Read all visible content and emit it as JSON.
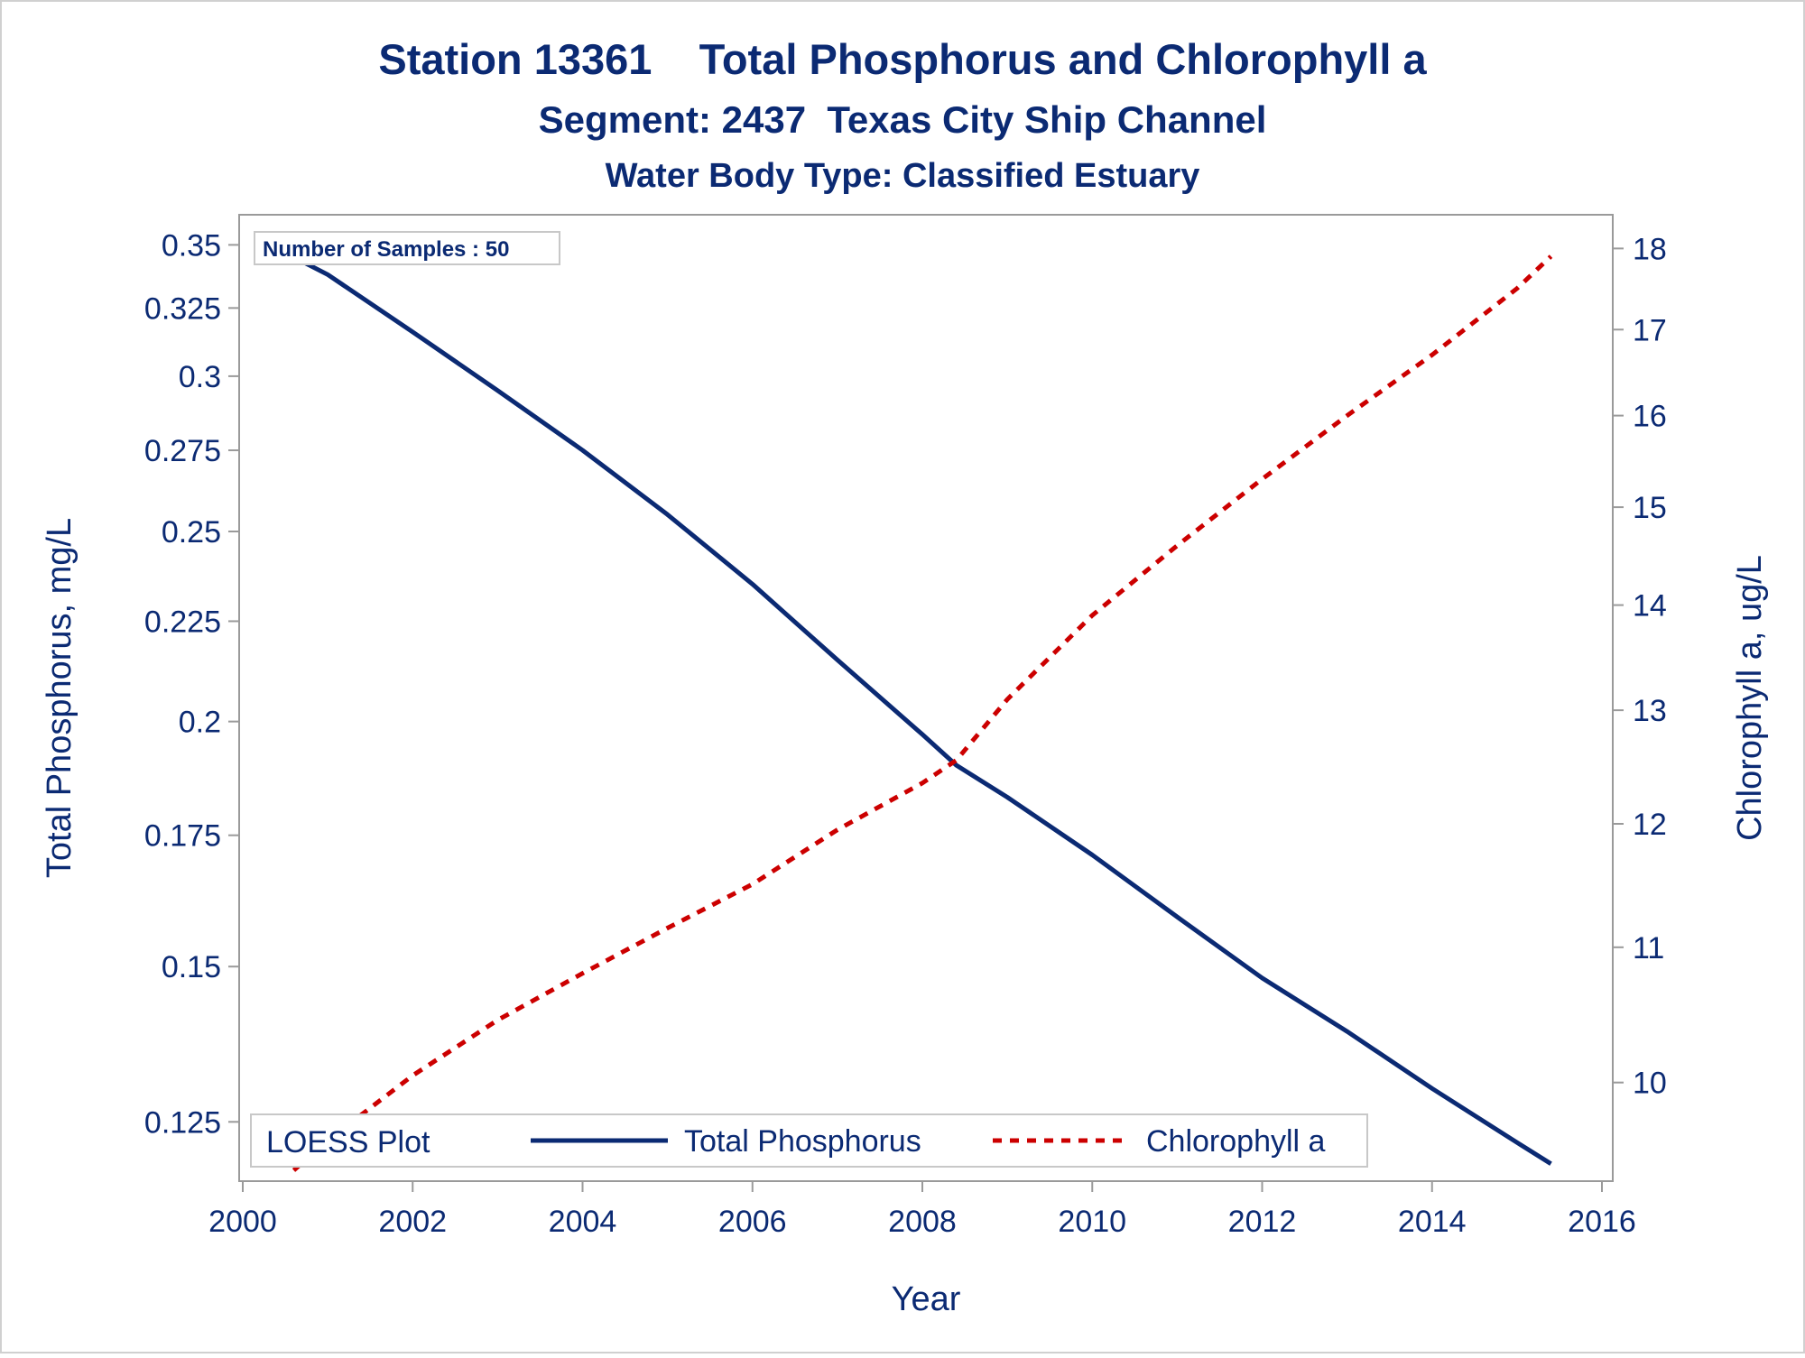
{
  "chart_data": {
    "type": "line",
    "title": "Station 13361    Total Phosphorus and Chlorophyll a",
    "subtitle": "Segment: 2437  Texas City Ship Channel",
    "subtitle2": "Water Body Type: Classified Estuary",
    "inset_label": "Number of Samples : 50",
    "xlabel": "Year",
    "ylabel_left": "Total Phosphorus, mg/L",
    "ylabel_right": "Chlorophyll a, ug/L",
    "xlim": [
      2000,
      2016
    ],
    "ylim_left": [
      0.121,
      0.355
    ],
    "ylim_right": [
      9.4,
      18.2
    ],
    "y_scale": "log",
    "x_ticks": [
      "2000",
      "2002",
      "2004",
      "2006",
      "2008",
      "2010",
      "2012",
      "2014",
      "2016"
    ],
    "y_left_ticks": [
      "0.125",
      "0.15",
      "0.175",
      "0.2",
      "0.225",
      "0.25",
      "0.275",
      "0.3",
      "0.325",
      "0.35"
    ],
    "y_right_ticks": [
      "10",
      "11",
      "12",
      "13",
      "14",
      "15",
      "16",
      "17",
      "18"
    ],
    "legend_title": "LOESS Plot",
    "legend_position": "bottom-inside",
    "grid": false,
    "series": [
      {
        "name": "Total Phosphorus",
        "axis": "left",
        "color": "#0b2a73",
        "style": "solid",
        "x": [
          2000.6,
          2001,
          2002,
          2003,
          2004,
          2005,
          2006,
          2007,
          2008,
          2008.4,
          2009,
          2010,
          2011,
          2012,
          2013,
          2014,
          2015,
          2015.4
        ],
        "y": [
          0.345,
          0.338,
          0.316,
          0.295,
          0.275,
          0.255,
          0.235,
          0.215,
          0.197,
          0.19,
          0.183,
          0.171,
          0.159,
          0.148,
          0.139,
          0.13,
          0.122,
          0.119
        ]
      },
      {
        "name": "Chlorophyll a",
        "axis": "right",
        "color": "#cc0000",
        "style": "dashed",
        "x": [
          2000.6,
          2001,
          2002,
          2003,
          2004,
          2005,
          2006,
          2007,
          2008,
          2008.4,
          2009,
          2010,
          2011,
          2012,
          2013,
          2014,
          2015,
          2015.4
        ],
        "y": [
          9.4,
          9.6,
          10.05,
          10.45,
          10.8,
          11.15,
          11.5,
          11.95,
          12.35,
          12.55,
          13.1,
          13.9,
          14.6,
          15.3,
          16.0,
          16.7,
          17.5,
          17.9
        ]
      }
    ]
  }
}
